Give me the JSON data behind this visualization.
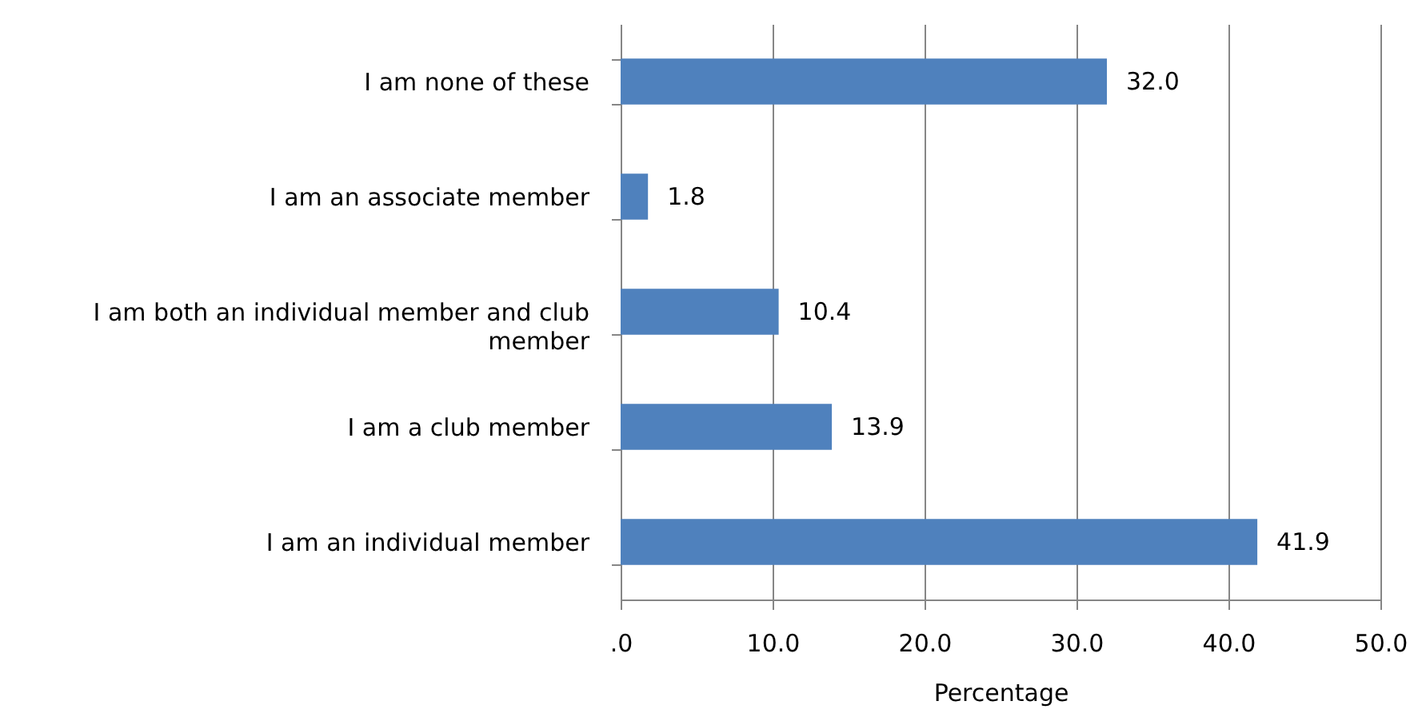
{
  "chart_data": {
    "type": "bar",
    "orientation": "horizontal",
    "categories": [
      "I am none of these",
      "I am an associate member",
      "I am both an individual member and club member",
      "I am a club member",
      "I am an individual member"
    ],
    "values": [
      32.0,
      1.8,
      10.4,
      13.9,
      41.9
    ],
    "value_labels": [
      "32.0",
      "1.8",
      "10.4",
      "13.9",
      "41.9"
    ],
    "color": "#4f81bd",
    "xlim": [
      0,
      50
    ],
    "xticks": [
      {
        "value": 0,
        "label": ".0"
      },
      {
        "value": 10,
        "label": "10.0"
      },
      {
        "value": 20,
        "label": "20.0"
      },
      {
        "value": 30,
        "label": "30.0"
      },
      {
        "value": 40,
        "label": "40.0"
      },
      {
        "value": 50,
        "label": "50.0"
      }
    ],
    "xlabel": "Percentage",
    "grid": "x"
  }
}
